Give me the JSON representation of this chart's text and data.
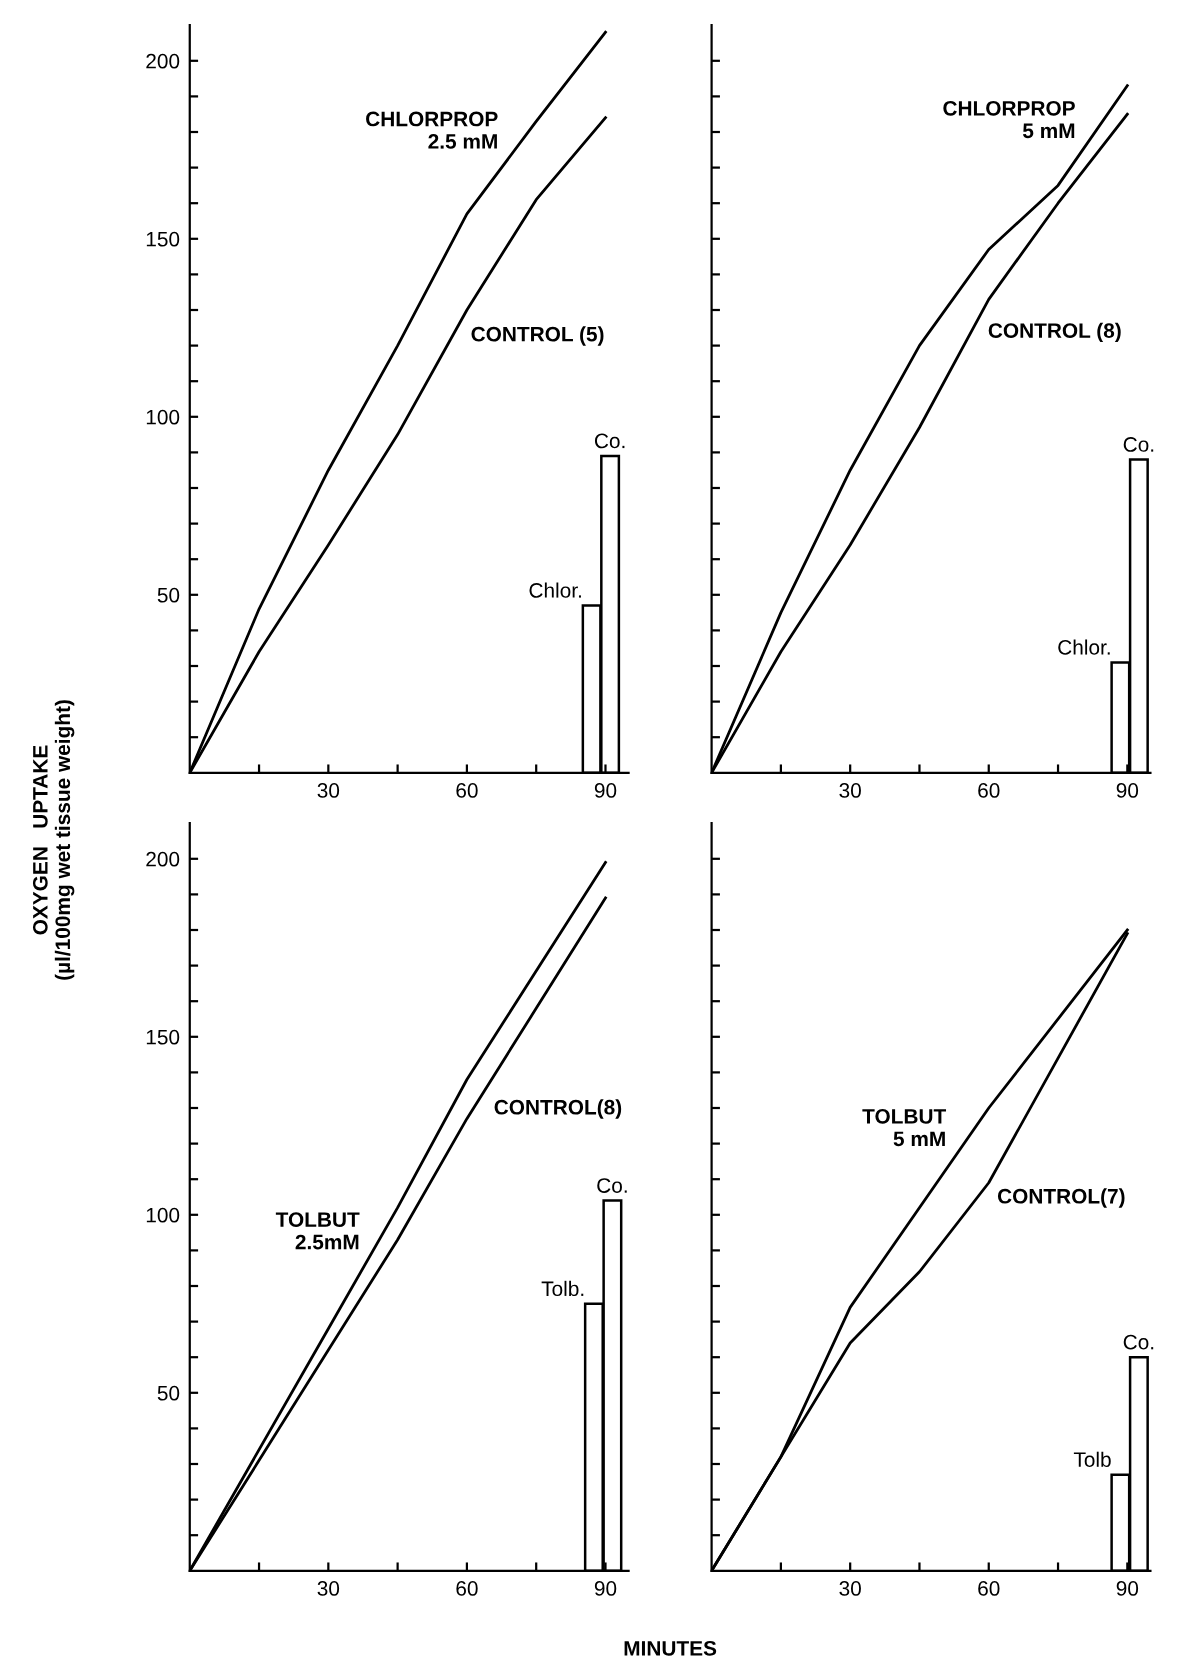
{
  "chart_data": [
    {
      "type": "line",
      "ylabel": "OXYGEN   UPTAKE\n(µl/100mg wet tissue weight)",
      "xlim": [
        0,
        95
      ],
      "ylim": [
        0,
        210
      ],
      "xticks": [
        {
          "value": 15,
          "label": null
        },
        30,
        {
          "value": 45,
          "label": null
        },
        60,
        {
          "value": 75,
          "label": null
        },
        90
      ],
      "yticks": [
        {
          "value": 10,
          "label": null
        },
        {
          "value": 20,
          "label": null
        },
        {
          "value": 30,
          "label": null
        },
        {
          "value": 40,
          "label": null
        },
        50,
        {
          "value": 60,
          "label": null
        },
        {
          "value": 70,
          "label": null
        },
        {
          "value": 80,
          "label": null
        },
        {
          "value": 90,
          "label": null
        },
        100,
        {
          "value": 110,
          "label": null
        },
        {
          "value": 120,
          "label": null
        },
        {
          "value": 130,
          "label": null
        },
        {
          "value": 140,
          "label": null
        },
        150,
        {
          "value": 160,
          "label": null
        },
        {
          "value": 170,
          "label": null
        },
        {
          "value": 180,
          "label": null
        },
        {
          "value": 190,
          "label": null
        },
        200
      ],
      "series": [
        {
          "x": [
            0,
            15,
            30,
            45,
            60,
            75,
            90
          ],
          "values": [
            0,
            46,
            85,
            120,
            157,
            183,
            208
          ],
          "color": "#000000"
        },
        {
          "x": [
            0,
            15,
            30,
            45,
            60,
            75,
            90
          ],
          "values": [
            0,
            34,
            64,
            95,
            130,
            161,
            184
          ],
          "color": "#000000"
        },
        {
          "type": "bar",
          "name": "Chlor.",
          "x": [
            87
          ],
          "values": [
            47
          ],
          "color": "#ffffff"
        },
        {
          "type": "bar",
          "name": "Co.",
          "x": [
            91
          ],
          "values": [
            89
          ],
          "color": "#ffffff"
        }
      ],
      "annotations": [
        {
          "text": "CHLORPROP\n2.5 mM",
          "x": 68,
          "y": 171
        },
        {
          "text": "CONTROL (5)",
          "x": 59,
          "y": 127
        }
      ]
    },
    {
      "type": "line",
      "xlim": [
        0,
        95
      ],
      "ylim": [
        0,
        210
      ],
      "tick_labels": "x",
      "xticks": [
        {
          "value": 15,
          "label": null
        },
        30,
        {
          "value": 45,
          "label": null
        },
        60,
        {
          "value": 75,
          "label": null
        },
        90
      ],
      "yticks": [
        {
          "value": 10,
          "label": null
        },
        {
          "value": 20,
          "label": null
        },
        {
          "value": 30,
          "label": null
        },
        {
          "value": 40,
          "label": null
        },
        {
          "value": 50,
          "label": null
        },
        {
          "value": 60,
          "label": null
        },
        {
          "value": 70,
          "label": null
        },
        {
          "value": 80,
          "label": null
        },
        {
          "value": 90,
          "label": null
        },
        {
          "value": 100,
          "label": null
        },
        {
          "value": 110,
          "label": null
        },
        {
          "value": 120,
          "label": null
        },
        {
          "value": 130,
          "label": null
        },
        {
          "value": 140,
          "label": null
        },
        {
          "value": 150,
          "label": null
        },
        {
          "value": 160,
          "label": null
        },
        {
          "value": 170,
          "label": null
        },
        {
          "value": 180,
          "label": null
        },
        {
          "value": 190,
          "label": null
        },
        {
          "value": 200,
          "label": null
        }
      ],
      "series": [
        {
          "x": [
            0,
            15,
            30,
            45,
            60,
            75,
            90
          ],
          "values": [
            0,
            45,
            85,
            120,
            147,
            165,
            193
          ],
          "color": "#000000"
        },
        {
          "x": [
            0,
            15,
            30,
            45,
            60,
            75,
            90
          ],
          "values": [
            0,
            34,
            64,
            97,
            133,
            160,
            185
          ],
          "color": "#000000"
        },
        {
          "type": "bar",
          "name": "Chlor.",
          "x": [
            88.5
          ],
          "values": [
            31
          ],
          "color": "#ffffff"
        },
        {
          "type": "bar",
          "name": "Co.",
          "x": [
            92.5
          ],
          "values": [
            88
          ],
          "color": "#ffffff"
        }
      ],
      "annotations": [
        {
          "text": "CHLORPROP\n5 mM",
          "x": 80,
          "y": 174
        },
        {
          "text": "CONTROL (8)",
          "x": 58,
          "y": 128
        }
      ]
    },
    {
      "type": "line",
      "xlim": [
        0,
        95
      ],
      "ylim": [
        0,
        210
      ],
      "xticks": [
        {
          "value": 15,
          "label": null
        },
        30,
        {
          "value": 45,
          "label": null
        },
        60,
        {
          "value": 75,
          "label": null
        },
        90
      ],
      "yticks": [
        {
          "value": 10,
          "label": null
        },
        {
          "value": 20,
          "label": null
        },
        {
          "value": 30,
          "label": null
        },
        {
          "value": 40,
          "label": null
        },
        50,
        {
          "value": 60,
          "label": null
        },
        {
          "value": 70,
          "label": null
        },
        {
          "value": 80,
          "label": null
        },
        {
          "value": 90,
          "label": null
        },
        100,
        {
          "value": 110,
          "label": null
        },
        {
          "value": 120,
          "label": null
        },
        {
          "value": 130,
          "label": null
        },
        {
          "value": 140,
          "label": null
        },
        150,
        {
          "value": 160,
          "label": null
        },
        {
          "value": 170,
          "label": null
        },
        {
          "value": 180,
          "label": null
        },
        {
          "value": 190,
          "label": null
        },
        200
      ],
      "series": [
        {
          "x": [
            0,
            30,
            45,
            60,
            90
          ],
          "values": [
            0,
            68,
            102,
            138,
            199
          ],
          "color": "#000000"
        },
        {
          "x": [
            0,
            30,
            45,
            60,
            75,
            90
          ],
          "values": [
            0,
            62,
            93,
            127,
            158,
            189
          ],
          "color": "#000000"
        },
        {
          "type": "bar",
          "name": "Tolb.",
          "x": [
            87.5
          ],
          "values": [
            75
          ],
          "color": "#ffffff"
        },
        {
          "type": "bar",
          "name": "Co.",
          "x": [
            91.5
          ],
          "values": [
            104
          ],
          "color": "#ffffff"
        }
      ],
      "annotations": [
        {
          "text": "TOLBUT\n2.5mM",
          "x": 38,
          "y": 86
        },
        {
          "text": "CONTROL(8)",
          "x": 64,
          "y": 134
        }
      ]
    },
    {
      "type": "line",
      "xlabel": "MINUTES",
      "xlim": [
        0,
        95
      ],
      "ylim": [
        0,
        210
      ],
      "tick_labels": "x",
      "xticks": [
        {
          "value": 15,
          "label": null
        },
        30,
        {
          "value": 45,
          "label": null
        },
        60,
        {
          "value": 75,
          "label": null
        },
        90
      ],
      "yticks": [
        {
          "value": 10,
          "label": null
        },
        {
          "value": 20,
          "label": null
        },
        {
          "value": 30,
          "label": null
        },
        {
          "value": 40,
          "label": null
        },
        {
          "value": 50,
          "label": null
        },
        {
          "value": 60,
          "label": null
        },
        {
          "value": 70,
          "label": null
        },
        {
          "value": 80,
          "label": null
        },
        {
          "value": 90,
          "label": null
        },
        {
          "value": 100,
          "label": null
        },
        {
          "value": 110,
          "label": null
        },
        {
          "value": 120,
          "label": null
        },
        {
          "value": 130,
          "label": null
        },
        {
          "value": 140,
          "label": null
        },
        {
          "value": 150,
          "label": null
        },
        {
          "value": 160,
          "label": null
        },
        {
          "value": 170,
          "label": null
        },
        {
          "value": 180,
          "label": null
        },
        {
          "value": 190,
          "label": null
        },
        {
          "value": 200,
          "label": null
        }
      ],
      "series": [
        {
          "x": [
            0,
            15,
            30,
            60,
            90
          ],
          "values": [
            0,
            32,
            74,
            130,
            180
          ],
          "color": "#000000"
        },
        {
          "x": [
            0,
            30,
            45,
            60,
            90
          ],
          "values": [
            0,
            64,
            84,
            109,
            179
          ],
          "color": "#000000"
        },
        {
          "type": "bar",
          "name": "Tolb",
          "x": [
            88.5
          ],
          "values": [
            27
          ],
          "color": "#ffffff"
        },
        {
          "type": "bar",
          "name": "Co.",
          "x": [
            92.5
          ],
          "values": [
            60
          ],
          "color": "#ffffff"
        }
      ],
      "annotations": [
        {
          "text": "TOLBUT\n5 mM",
          "x": 52,
          "y": 115
        },
        {
          "text": "CONTROL(7)",
          "x": 60,
          "y": 109
        }
      ]
    }
  ]
}
